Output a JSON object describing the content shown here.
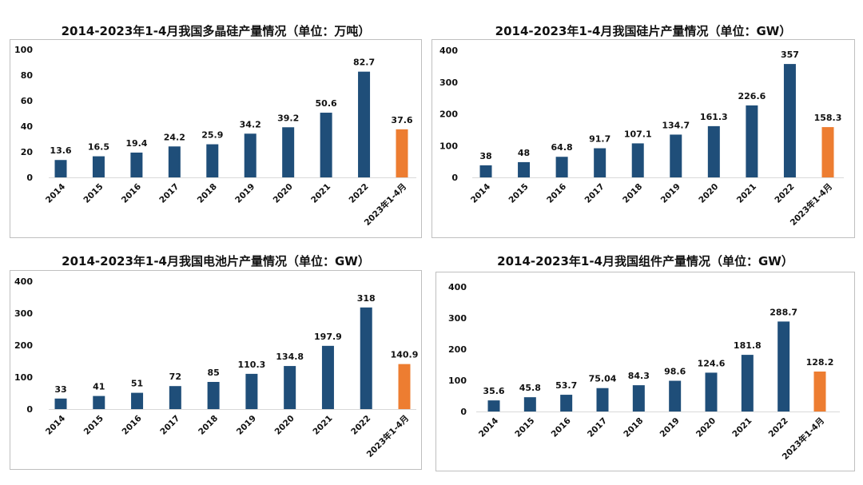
{
  "colors": {
    "bar": "#1f4e79",
    "highlight": "#ed7d31",
    "axis": "#d9d9d9"
  },
  "chart_data": [
    {
      "type": "bar",
      "title": "2014-2023年1-4月我国多晶硅产量情况（单位：万吨）",
      "categories": [
        "2014",
        "2015",
        "2016",
        "2017",
        "2018",
        "2019",
        "2020",
        "2021",
        "2022",
        "2023年1-4月"
      ],
      "values": [
        13.6,
        16.5,
        19.4,
        24.2,
        25.9,
        34.2,
        39.2,
        50.6,
        82.7,
        37.6
      ],
      "data_labels": [
        "13.6",
        "16.5",
        "19.4",
        "24.2",
        "25.9",
        "34.2",
        "39.2",
        "50.6",
        "82.7",
        "37.6"
      ],
      "highlight_index": 9,
      "ylim": [
        0,
        100
      ],
      "yticks": [
        "0",
        "20",
        "40",
        "60",
        "80",
        "100"
      ],
      "grid": false,
      "legend": "none"
    },
    {
      "type": "bar",
      "title": "2014-2023年1-4月我国硅片产量情况（单位：GW）",
      "categories": [
        "2014",
        "2015",
        "2016",
        "2017",
        "2018",
        "2019",
        "2020",
        "2021",
        "2022",
        "2023年1-4月"
      ],
      "values": [
        38,
        48,
        64.8,
        91.7,
        107.1,
        134.7,
        161.3,
        226.6,
        357,
        158.3
      ],
      "data_labels": [
        "38",
        "48",
        "64.8",
        "91.7",
        "107.1",
        "134.7",
        "161.3",
        "226.6",
        "357",
        "158.3"
      ],
      "highlight_index": 9,
      "ylim": [
        0,
        400
      ],
      "yticks": [
        "0",
        "100",
        "200",
        "300",
        "400"
      ],
      "grid": false,
      "legend": "none"
    },
    {
      "type": "bar",
      "title": "2014-2023年1-4月我国电池片产量情况（单位：GW）",
      "categories": [
        "2014",
        "2015",
        "2016",
        "2017",
        "2018",
        "2019",
        "2020",
        "2021",
        "2022",
        "2023年1-4月"
      ],
      "values": [
        33,
        41,
        51,
        72,
        85,
        110.3,
        134.8,
        197.9,
        318,
        140.9
      ],
      "data_labels": [
        "33",
        "41",
        "51",
        "72",
        "85",
        "110.3",
        "134.8",
        "197.9",
        "318",
        "140.9"
      ],
      "highlight_index": 9,
      "ylim": [
        0,
        400
      ],
      "yticks": [
        "0",
        "100",
        "200",
        "300",
        "400"
      ],
      "grid": false,
      "legend": "none"
    },
    {
      "type": "bar",
      "title": "2014-2023年1-4月我国组件产量情况（单位：GW）",
      "categories": [
        "2014",
        "2015",
        "2016",
        "2017",
        "2018",
        "2019",
        "2020",
        "2021",
        "2022",
        "2023年1-4月"
      ],
      "values": [
        35.6,
        45.8,
        53.7,
        75.04,
        84.3,
        98.6,
        124.6,
        181.8,
        288.7,
        128.2
      ],
      "data_labels": [
        "35.6",
        "45.8",
        "53.7",
        "75.04",
        "84.3",
        "98.6",
        "124.6",
        "181.8",
        "288.7",
        "128.2"
      ],
      "highlight_index": 9,
      "ylim": [
        0,
        400
      ],
      "yticks": [
        "0",
        "100",
        "200",
        "300",
        "400"
      ],
      "grid": false,
      "legend": "none"
    }
  ]
}
